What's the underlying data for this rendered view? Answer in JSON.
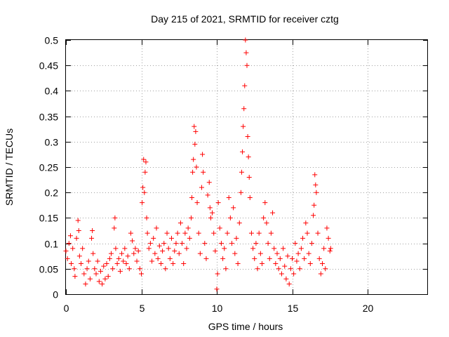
{
  "chart_data": {
    "type": "scatter",
    "title": "Day 215 of 2021, SRMTID for receiver cztg",
    "xlabel": "GPS time / hours",
    "ylabel": "SRMTID / TECUs",
    "xlim": [
      0,
      24
    ],
    "ylim": [
      0,
      0.5
    ],
    "x_ticks": [
      0,
      5,
      10,
      15,
      20
    ],
    "x_tick_labels": [
      "0",
      "5",
      "10",
      "15",
      "20"
    ],
    "y_ticks": [
      0,
      0.05,
      0.1,
      0.15,
      0.2,
      0.25,
      0.3,
      0.35,
      0.4,
      0.45,
      0.5
    ],
    "y_tick_labels": [
      "0",
      "0.05",
      "0.1",
      "0.15",
      "0.2",
      "0.25",
      "0.3",
      "0.35",
      "0.4",
      "0.45",
      "0.5"
    ],
    "grid": true,
    "marker": "+",
    "color": "#ff0000",
    "series": [
      {
        "name": "SRMTID",
        "points": [
          [
            0.0,
            0.085
          ],
          [
            0.1,
            0.07
          ],
          [
            0.2,
            0.1
          ],
          [
            0.3,
            0.115
          ],
          [
            0.35,
            0.06
          ],
          [
            0.45,
            0.09
          ],
          [
            0.55,
            0.05
          ],
          [
            0.6,
            0.035
          ],
          [
            0.7,
            0.11
          ],
          [
            0.8,
            0.145
          ],
          [
            0.85,
            0.125
          ],
          [
            0.9,
            0.075
          ],
          [
            1.0,
            0.06
          ],
          [
            1.1,
            0.09
          ],
          [
            1.2,
            0.04
          ],
          [
            1.3,
            0.02
          ],
          [
            1.4,
            0.05
          ],
          [
            1.5,
            0.065
          ],
          [
            1.6,
            0.03
          ],
          [
            1.7,
            0.11
          ],
          [
            1.75,
            0.125
          ],
          [
            1.8,
            0.08
          ],
          [
            1.9,
            0.05
          ],
          [
            2.0,
            0.04
          ],
          [
            2.1,
            0.065
          ],
          [
            2.2,
            0.025
          ],
          [
            2.3,
            0.045
          ],
          [
            2.4,
            0.02
          ],
          [
            2.5,
            0.055
          ],
          [
            2.6,
            0.03
          ],
          [
            2.7,
            0.06
          ],
          [
            2.8,
            0.035
          ],
          [
            2.9,
            0.07
          ],
          [
            3.0,
            0.08
          ],
          [
            3.1,
            0.05
          ],
          [
            3.2,
            0.13
          ],
          [
            3.25,
            0.15
          ],
          [
            3.3,
            0.09
          ],
          [
            3.4,
            0.06
          ],
          [
            3.5,
            0.07
          ],
          [
            3.6,
            0.045
          ],
          [
            3.7,
            0.08
          ],
          [
            3.8,
            0.065
          ],
          [
            3.9,
            0.09
          ],
          [
            4.0,
            0.06
          ],
          [
            4.1,
            0.075
          ],
          [
            4.2,
            0.05
          ],
          [
            4.3,
            0.12
          ],
          [
            4.4,
            0.105
          ],
          [
            4.5,
            0.08
          ],
          [
            4.6,
            0.09
          ],
          [
            4.7,
            0.065
          ],
          [
            4.8,
            0.085
          ],
          [
            4.9,
            0.05
          ],
          [
            5.0,
            0.04
          ],
          [
            5.05,
            0.18
          ],
          [
            5.1,
            0.21
          ],
          [
            5.15,
            0.265
          ],
          [
            5.2,
            0.2
          ],
          [
            5.25,
            0.24
          ],
          [
            5.3,
            0.26
          ],
          [
            5.35,
            0.15
          ],
          [
            5.4,
            0.12
          ],
          [
            5.5,
            0.09
          ],
          [
            5.6,
            0.1
          ],
          [
            5.7,
            0.065
          ],
          [
            5.8,
            0.11
          ],
          [
            5.9,
            0.08
          ],
          [
            6.0,
            0.13
          ],
          [
            6.1,
            0.07
          ],
          [
            6.2,
            0.095
          ],
          [
            6.3,
            0.06
          ],
          [
            6.4,
            0.085
          ],
          [
            6.5,
            0.1
          ],
          [
            6.6,
            0.05
          ],
          [
            6.7,
            0.12
          ],
          [
            6.8,
            0.09
          ],
          [
            6.9,
            0.07
          ],
          [
            7.0,
            0.11
          ],
          [
            7.1,
            0.06
          ],
          [
            7.2,
            0.085
          ],
          [
            7.3,
            0.1
          ],
          [
            7.4,
            0.12
          ],
          [
            7.5,
            0.08
          ],
          [
            7.6,
            0.14
          ],
          [
            7.7,
            0.1
          ],
          [
            7.8,
            0.06
          ],
          [
            7.9,
            0.12
          ],
          [
            8.0,
            0.09
          ],
          [
            8.1,
            0.13
          ],
          [
            8.2,
            0.11
          ],
          [
            8.3,
            0.15
          ],
          [
            8.35,
            0.19
          ],
          [
            8.4,
            0.24
          ],
          [
            8.45,
            0.265
          ],
          [
            8.5,
            0.33
          ],
          [
            8.55,
            0.295
          ],
          [
            8.6,
            0.32
          ],
          [
            8.65,
            0.25
          ],
          [
            8.7,
            0.18
          ],
          [
            8.8,
            0.12
          ],
          [
            8.9,
            0.08
          ],
          [
            9.0,
            0.21
          ],
          [
            9.05,
            0.275
          ],
          [
            9.1,
            0.24
          ],
          [
            9.2,
            0.1
          ],
          [
            9.3,
            0.07
          ],
          [
            9.4,
            0.195
          ],
          [
            9.5,
            0.22
          ],
          [
            9.55,
            0.17
          ],
          [
            9.6,
            0.15
          ],
          [
            9.7,
            0.16
          ],
          [
            9.8,
            0.12
          ],
          [
            9.9,
            0.085
          ],
          [
            10.0,
            0.01
          ],
          [
            10.05,
            0.04
          ],
          [
            10.1,
            0.18
          ],
          [
            10.2,
            0.13
          ],
          [
            10.3,
            0.1
          ],
          [
            10.4,
            0.07
          ],
          [
            10.5,
            0.09
          ],
          [
            10.6,
            0.05
          ],
          [
            10.7,
            0.12
          ],
          [
            10.8,
            0.19
          ],
          [
            10.9,
            0.15
          ],
          [
            11.0,
            0.1
          ],
          [
            11.1,
            0.17
          ],
          [
            11.2,
            0.08
          ],
          [
            11.3,
            0.11
          ],
          [
            11.4,
            0.06
          ],
          [
            11.5,
            0.14
          ],
          [
            11.6,
            0.2
          ],
          [
            11.65,
            0.24
          ],
          [
            11.7,
            0.28
          ],
          [
            11.75,
            0.33
          ],
          [
            11.8,
            0.365
          ],
          [
            11.85,
            0.41
          ],
          [
            11.9,
            0.5
          ],
          [
            11.95,
            0.475
          ],
          [
            12.0,
            0.45
          ],
          [
            12.05,
            0.31
          ],
          [
            12.1,
            0.27
          ],
          [
            12.15,
            0.23
          ],
          [
            12.2,
            0.19
          ],
          [
            12.3,
            0.12
          ],
          [
            12.4,
            0.09
          ],
          [
            12.5,
            0.07
          ],
          [
            12.6,
            0.1
          ],
          [
            12.7,
            0.05
          ],
          [
            12.8,
            0.12
          ],
          [
            12.9,
            0.08
          ],
          [
            13.0,
            0.06
          ],
          [
            13.1,
            0.15
          ],
          [
            13.2,
            0.18
          ],
          [
            13.3,
            0.14
          ],
          [
            13.4,
            0.1
          ],
          [
            13.5,
            0.07
          ],
          [
            13.6,
            0.12
          ],
          [
            13.7,
            0.16
          ],
          [
            13.8,
            0.09
          ],
          [
            13.9,
            0.06
          ],
          [
            14.0,
            0.08
          ],
          [
            14.1,
            0.05
          ],
          [
            14.2,
            0.07
          ],
          [
            14.3,
            0.04
          ],
          [
            14.4,
            0.09
          ],
          [
            14.5,
            0.055
          ],
          [
            14.6,
            0.03
          ],
          [
            14.7,
            0.075
          ],
          [
            14.8,
            0.02
          ],
          [
            14.9,
            0.05
          ],
          [
            15.0,
            0.07
          ],
          [
            15.1,
            0.04
          ],
          [
            15.2,
            0.1
          ],
          [
            15.3,
            0.065
          ],
          [
            15.4,
            0.08
          ],
          [
            15.5,
            0.05
          ],
          [
            15.6,
            0.09
          ],
          [
            15.7,
            0.11
          ],
          [
            15.8,
            0.07
          ],
          [
            15.9,
            0.14
          ],
          [
            16.0,
            0.12
          ],
          [
            16.1,
            0.08
          ],
          [
            16.2,
            0.06
          ],
          [
            16.3,
            0.1
          ],
          [
            16.4,
            0.155
          ],
          [
            16.45,
            0.175
          ],
          [
            16.5,
            0.235
          ],
          [
            16.55,
            0.215
          ],
          [
            16.6,
            0.2
          ],
          [
            16.7,
            0.12
          ],
          [
            16.8,
            0.07
          ],
          [
            16.9,
            0.04
          ],
          [
            17.0,
            0.06
          ],
          [
            17.1,
            0.09
          ],
          [
            17.2,
            0.05
          ],
          [
            17.3,
            0.13
          ],
          [
            17.4,
            0.11
          ],
          [
            17.5,
            0.085
          ],
          [
            17.55,
            0.09
          ]
        ]
      }
    ]
  }
}
